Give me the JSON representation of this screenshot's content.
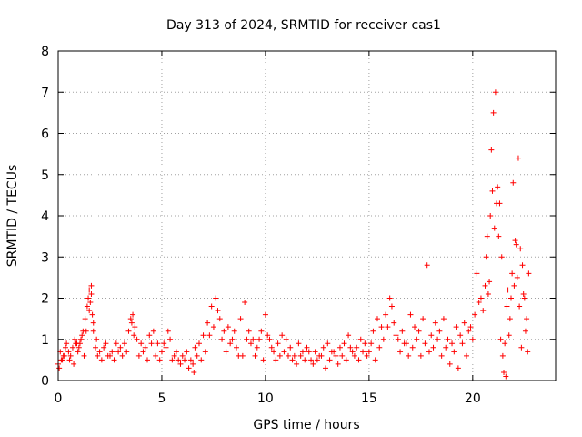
{
  "chart_data": {
    "type": "scatter",
    "title": "Day 313 of 2024, SRMTID for receiver cas1",
    "xlabel": "GPS time / hours",
    "ylabel": "SRMTID / TECUs",
    "xlim": [
      0,
      24
    ],
    "ylim": [
      0,
      8
    ],
    "xticks": [
      0,
      5,
      10,
      15,
      20
    ],
    "yticks": [
      0,
      1,
      2,
      3,
      4,
      5,
      6,
      7,
      8
    ],
    "grid": true,
    "marker": "plus",
    "color": "#ff0000",
    "series": [
      {
        "name": "SRMTID",
        "x": [
          0.0,
          0.1,
          0.2,
          0.3,
          0.4,
          0.5,
          0.6,
          0.7,
          0.8,
          0.9,
          1.0,
          1.1,
          1.2,
          1.3,
          1.4,
          1.45,
          1.5,
          1.55,
          1.6,
          1.65,
          1.7,
          1.8,
          1.9,
          2.0,
          2.2,
          2.4,
          2.6,
          2.8,
          3.0,
          3.2,
          3.4,
          3.5,
          3.6,
          3.7,
          3.8,
          4.0,
          4.2,
          4.4,
          4.6,
          4.8,
          5.0,
          5.2,
          5.4,
          5.6,
          5.8,
          6.0,
          6.2,
          6.4,
          6.5,
          6.6,
          6.8,
          7.0,
          7.2,
          7.4,
          7.6,
          7.8,
          8.0,
          8.2,
          8.4,
          8.6,
          8.8,
          9.0,
          9.2,
          9.4,
          9.6,
          9.8,
          10.0,
          10.2,
          10.4,
          10.6,
          10.8,
          11.0,
          11.2,
          11.4,
          11.6,
          11.8,
          12.0,
          12.2,
          12.4,
          12.6,
          12.8,
          13.0,
          13.2,
          13.4,
          13.6,
          13.8,
          14.0,
          14.2,
          14.4,
          14.6,
          14.8,
          15.0,
          15.2,
          15.4,
          15.6,
          15.8,
          16.0,
          16.2,
          16.4,
          16.6,
          16.8,
          17.0,
          17.2,
          17.4,
          17.6,
          17.8,
          18.0,
          18.2,
          18.4,
          18.6,
          18.8,
          19.0,
          19.2,
          19.4,
          19.6,
          19.8,
          20.0,
          20.2,
          20.4,
          20.6,
          20.7,
          20.8,
          20.9,
          21.0,
          21.1,
          21.2,
          21.3,
          21.4,
          21.5,
          21.6,
          21.7,
          21.8,
          21.9,
          22.0,
          22.1,
          22.2,
          22.3,
          22.4,
          22.5,
          22.6,
          22.7,
          0.05,
          0.15,
          0.25,
          0.35,
          0.55,
          0.75,
          0.85,
          0.95,
          1.05,
          1.15,
          1.25,
          1.35,
          1.5,
          1.6,
          1.7,
          1.85,
          2.1,
          2.3,
          2.5,
          2.7,
          2.9,
          3.1,
          3.3,
          3.55,
          3.65,
          3.9,
          4.1,
          4.3,
          4.5,
          4.7,
          4.9,
          5.1,
          5.3,
          5.5,
          5.7,
          5.9,
          6.1,
          6.3,
          6.55,
          6.7,
          6.9,
          7.1,
          7.3,
          7.5,
          7.7,
          7.9,
          8.1,
          8.3,
          8.5,
          8.7,
          8.9,
          9.1,
          9.3,
          9.5,
          9.7,
          9.9,
          10.1,
          10.3,
          10.5,
          10.7,
          10.9,
          11.1,
          11.3,
          11.5,
          11.7,
          11.9,
          12.1,
          12.3,
          12.5,
          12.7,
          12.9,
          13.1,
          13.3,
          13.5,
          13.7,
          13.9,
          14.1,
          14.3,
          14.5,
          14.7,
          14.9,
          15.1,
          15.3,
          15.5,
          15.7,
          15.9,
          16.1,
          16.3,
          16.5,
          16.7,
          16.9,
          17.1,
          17.3,
          17.5,
          17.7,
          17.9,
          18.1,
          18.3,
          18.5,
          18.7,
          18.9,
          19.1,
          19.3,
          19.5,
          19.7,
          19.9,
          20.1,
          20.3,
          20.5,
          20.65,
          20.75,
          20.85,
          20.95,
          21.05,
          21.15,
          21.25,
          21.35,
          21.45,
          21.55,
          21.65,
          21.75,
          21.85,
          21.95,
          22.05,
          22.15,
          22.25,
          22.35,
          22.45,
          22.55,
          22.65
        ],
        "y": [
          0.4,
          0.7,
          0.5,
          0.6,
          0.9,
          0.7,
          0.6,
          0.8,
          1.0,
          0.9,
          0.8,
          1.0,
          1.2,
          1.5,
          1.8,
          2.0,
          2.2,
          1.9,
          2.3,
          1.6,
          1.2,
          0.8,
          0.6,
          0.7,
          0.8,
          0.6,
          0.7,
          0.9,
          0.8,
          0.9,
          1.2,
          1.5,
          1.6,
          1.3,
          1.0,
          0.9,
          0.8,
          1.1,
          1.2,
          0.9,
          0.7,
          0.8,
          1.0,
          0.6,
          0.5,
          0.6,
          0.7,
          0.5,
          0.4,
          0.8,
          0.9,
          1.1,
          1.4,
          1.8,
          2.0,
          1.5,
          1.2,
          1.3,
          1.0,
          0.8,
          1.5,
          1.9,
          1.2,
          1.0,
          0.8,
          1.2,
          1.6,
          1.0,
          0.7,
          0.9,
          1.1,
          1.0,
          0.8,
          0.6,
          0.9,
          0.7,
          0.8,
          0.5,
          0.7,
          0.6,
          0.8,
          0.9,
          0.7,
          0.6,
          0.8,
          0.9,
          1.1,
          0.7,
          0.8,
          1.0,
          0.9,
          0.7,
          1.2,
          1.5,
          1.3,
          1.6,
          2.0,
          1.4,
          1.0,
          1.2,
          0.9,
          1.6,
          1.3,
          1.2,
          1.5,
          2.8,
          1.1,
          1.4,
          1.2,
          1.5,
          1.0,
          0.9,
          1.3,
          1.1,
          1.4,
          1.2,
          1.0,
          2.6,
          2.0,
          2.3,
          3.5,
          2.4,
          5.6,
          6.5,
          7.0,
          4.7,
          4.3,
          3.0,
          0.2,
          0.1,
          2.2,
          1.5,
          2.6,
          2.3,
          3.3,
          5.4,
          3.2,
          2.8,
          2.0,
          1.5,
          2.6,
          0.3,
          0.5,
          0.6,
          0.8,
          0.5,
          0.4,
          0.9,
          0.7,
          0.9,
          1.1,
          0.6,
          1.2,
          1.7,
          2.1,
          1.4,
          1.0,
          0.5,
          0.9,
          0.6,
          0.5,
          0.7,
          0.6,
          0.7,
          1.4,
          1.1,
          0.6,
          0.7,
          0.5,
          0.9,
          0.6,
          0.5,
          0.9,
          1.2,
          0.5,
          0.7,
          0.4,
          0.5,
          0.3,
          0.2,
          0.6,
          0.5,
          0.7,
          1.1,
          1.3,
          1.7,
          1.0,
          0.7,
          0.9,
          1.2,
          0.6,
          0.6,
          1.0,
          0.9,
          0.6,
          1.0,
          0.5,
          1.1,
          0.8,
          0.5,
          0.6,
          0.7,
          0.6,
          0.5,
          0.4,
          0.6,
          0.5,
          0.7,
          0.4,
          0.5,
          0.6,
          0.3,
          0.5,
          0.7,
          0.4,
          0.6,
          0.5,
          0.8,
          0.6,
          0.5,
          0.7,
          0.6,
          0.9,
          0.5,
          0.8,
          1.0,
          1.3,
          1.8,
          1.1,
          0.7,
          0.9,
          0.6,
          0.8,
          1.0,
          0.6,
          0.9,
          0.7,
          0.8,
          1.0,
          0.6,
          0.8,
          0.4,
          0.7,
          0.3,
          0.9,
          0.6,
          1.3,
          1.6,
          1.9,
          1.7,
          3.0,
          2.1,
          4.0,
          4.6,
          3.7,
          4.3,
          3.5,
          1.0,
          0.6,
          0.9,
          1.8,
          1.1,
          2.0,
          4.8,
          3.4,
          2.5,
          1.8,
          0.8,
          2.1,
          1.2,
          0.7
        ]
      }
    ]
  }
}
